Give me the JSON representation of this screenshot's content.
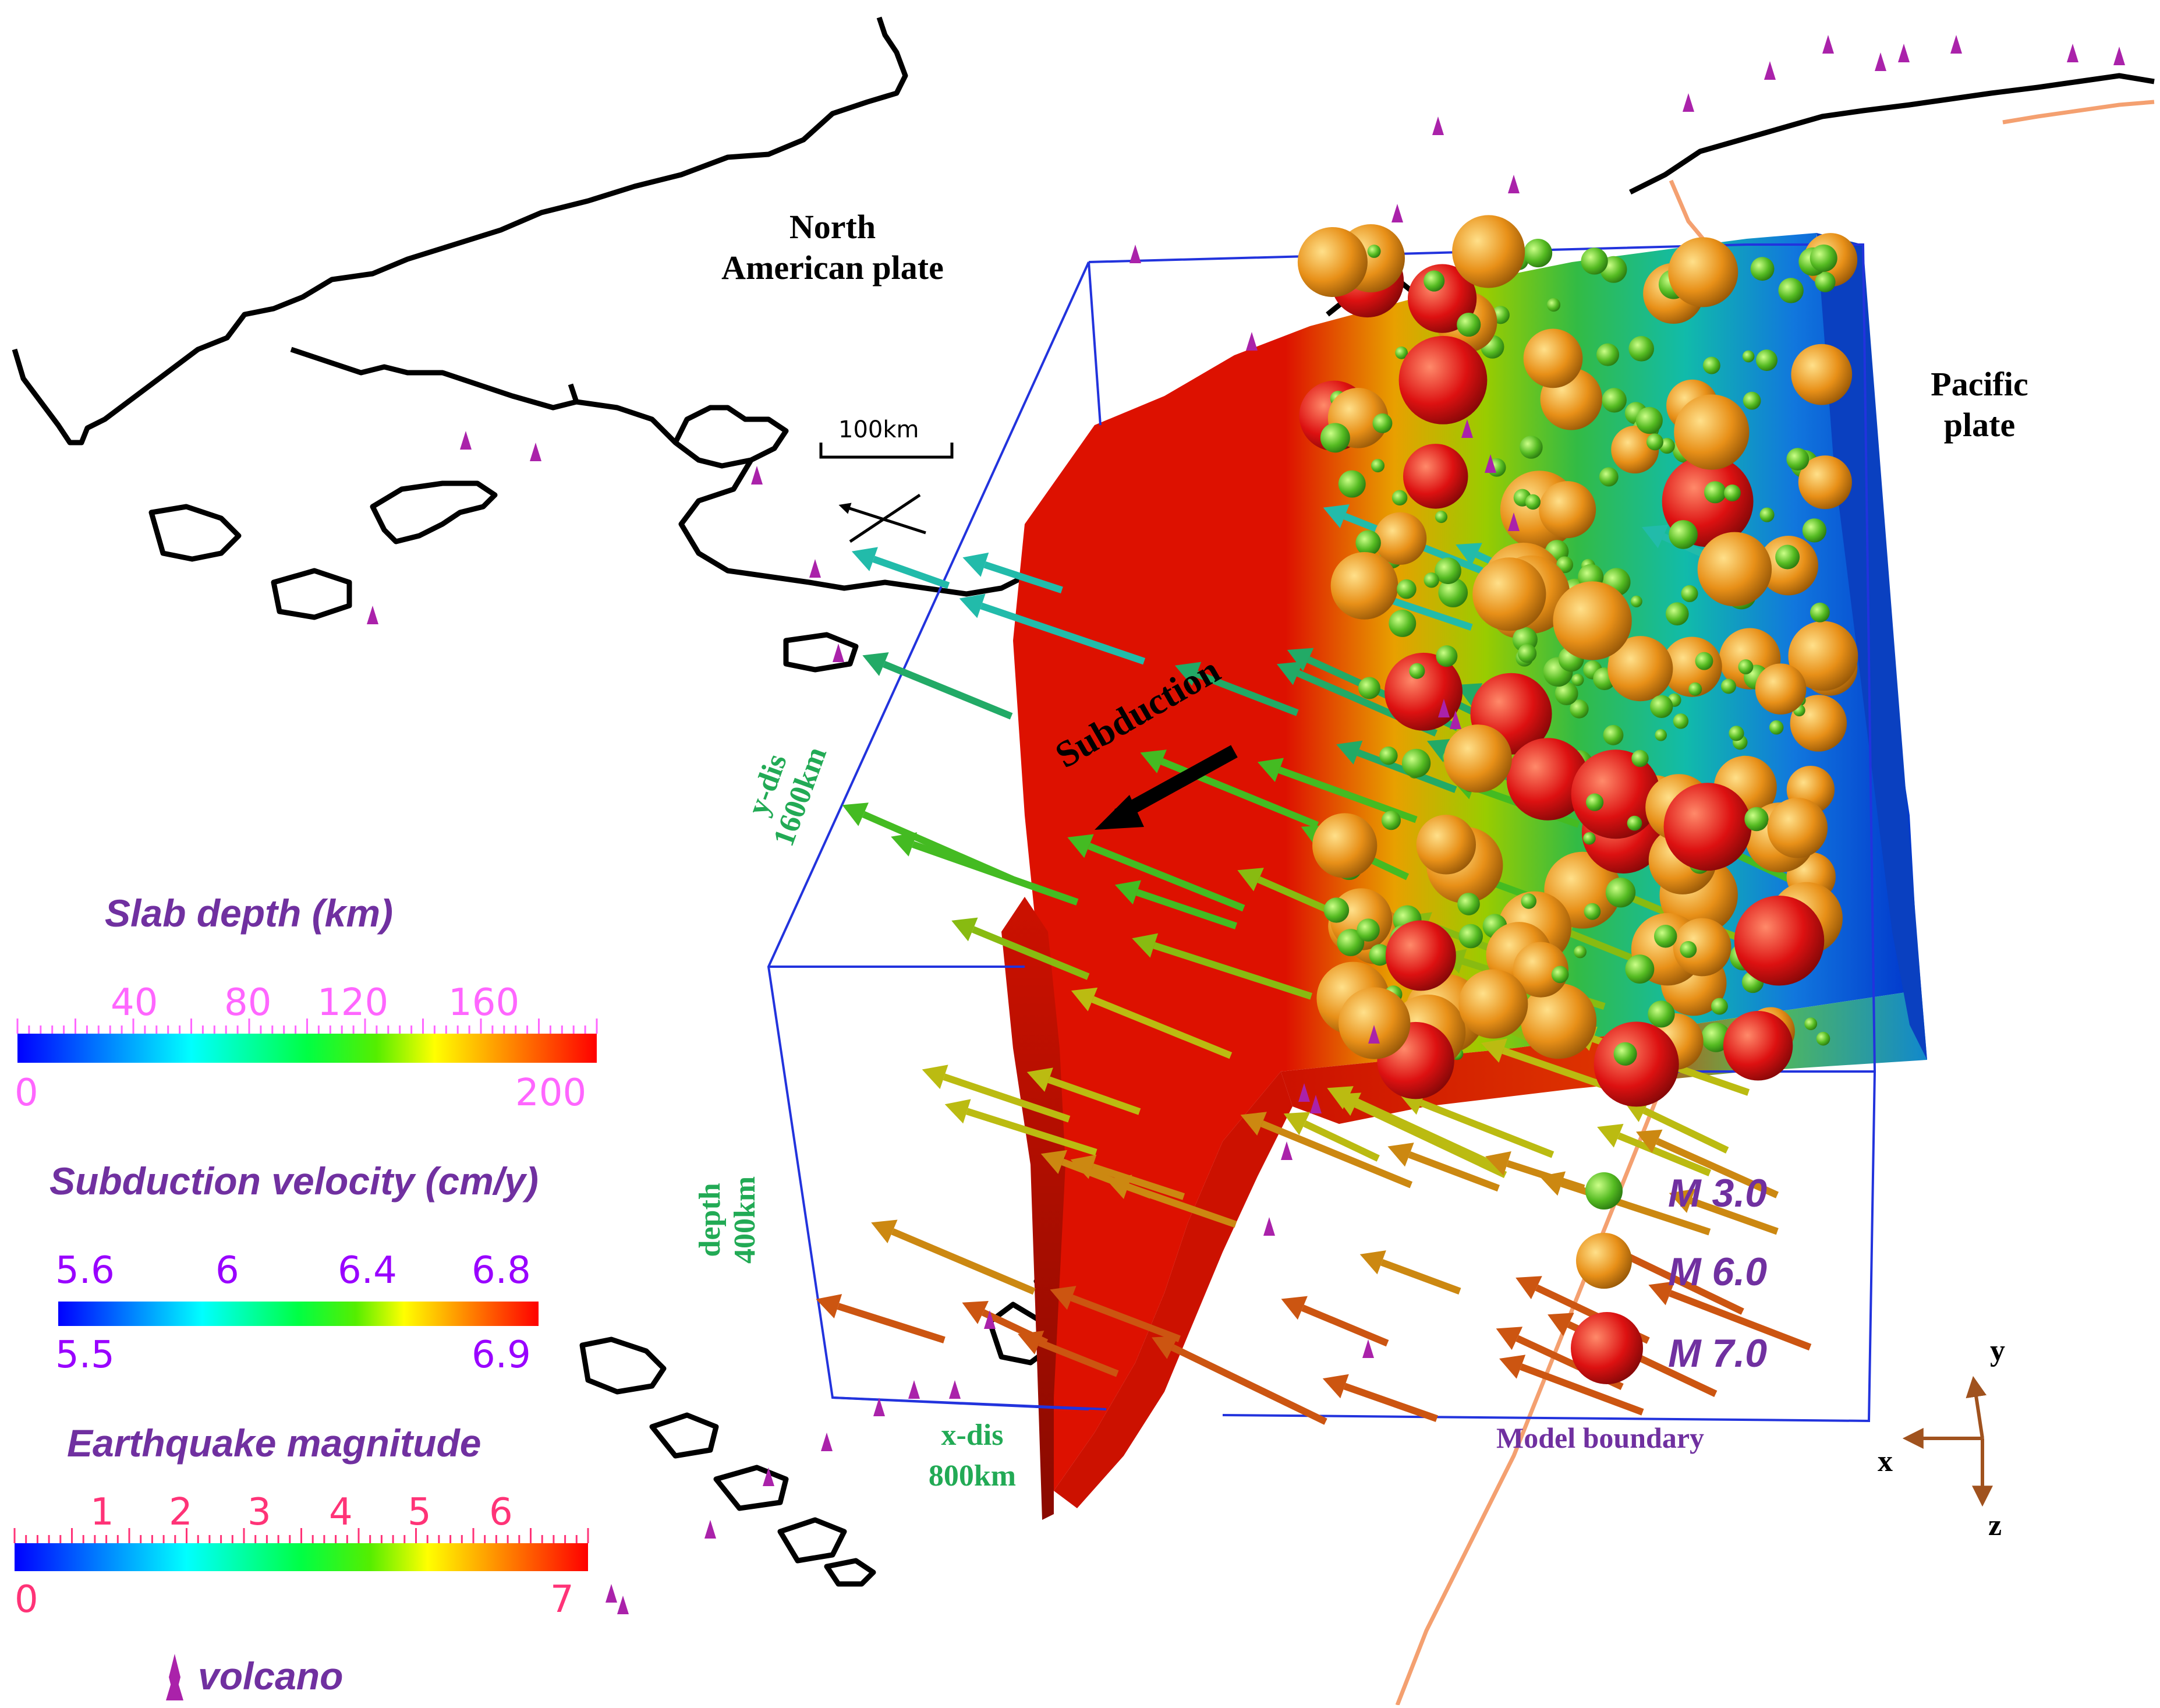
{
  "labels": {
    "north_american_plate": [
      "North",
      "American plate"
    ],
    "pacific_plate": [
      "Pacific",
      "plate"
    ],
    "scale_bar": "100km",
    "subduction": "Subduction",
    "y_dis": [
      "y-dis",
      "1600km"
    ],
    "depth": [
      "depth",
      "400km"
    ],
    "x_dis": [
      "x-dis",
      "800km"
    ],
    "model_boundary": "Model boundary",
    "axis_x": "x",
    "axis_y": "y",
    "axis_z": "z"
  },
  "legends": {
    "slab_depth": {
      "title": "Slab depth (km)",
      "top_ticks": [
        "40",
        "80",
        "120",
        "160"
      ],
      "bottom_ticks": [
        "0",
        "200"
      ],
      "label_color": "#ff66ff"
    },
    "subduction_velocity": {
      "title": "Subduction velocity (cm/y)",
      "top_ticks": [
        "5.6",
        "6",
        "6.4",
        "6.8"
      ],
      "bottom_ticks": [
        "5.5",
        "6.9"
      ],
      "label_color": "#9900ff"
    },
    "earthquake_magnitude": {
      "title": "Earthquake magnitude",
      "top_ticks": [
        "1",
        "2",
        "3",
        "4",
        "5",
        "6"
      ],
      "bottom_ticks": [
        "0",
        "7"
      ],
      "label_color": "#ff3377"
    },
    "volcano": "volcano"
  },
  "magnitude_key": [
    {
      "label": "M 3.0",
      "color": "#44bb22"
    },
    {
      "label": "M 6.0",
      "color": "#e89018"
    },
    {
      "label": "M 7.0",
      "color": "#dd1111"
    }
  ],
  "colors": {
    "title_purple": "#7030a0",
    "annotation_green": "#22aa55",
    "model_box": "#2233dd",
    "trench": "#f4a070",
    "axis_brown": "#a0521e",
    "slab_red": "#dd1100",
    "volcano": "#aa22aa"
  }
}
